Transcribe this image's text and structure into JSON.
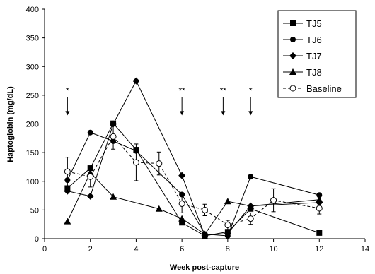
{
  "chart_data": {
    "type": "line",
    "title": "",
    "xlabel": "Week post-capture",
    "ylabel": "Haptoglobin (mg/dL)",
    "xlim": [
      0,
      14
    ],
    "ylim": [
      0,
      400
    ],
    "xticks": [
      "0",
      "2",
      "4",
      "6",
      "8",
      "10",
      "12",
      "14"
    ],
    "yticks": [
      "0",
      "50",
      "100",
      "150",
      "200",
      "250",
      "300",
      "350",
      "400"
    ],
    "grid": false,
    "legend_position": "top-right",
    "series": [
      {
        "name": "TJ5",
        "marker": "square",
        "line": "solid",
        "points": [
          [
            1,
            88
          ],
          [
            2,
            123
          ],
          [
            3,
            201
          ],
          [
            4,
            155
          ],
          [
            6,
            28
          ],
          [
            7,
            5
          ],
          [
            8,
            12
          ],
          [
            9,
            52
          ],
          [
            12,
            10
          ]
        ]
      },
      {
        "name": "TJ6",
        "marker": "circle",
        "line": "solid",
        "points": [
          [
            1,
            102
          ],
          [
            2,
            185
          ],
          [
            3,
            170
          ],
          [
            4,
            153
          ],
          [
            6,
            77
          ],
          [
            7,
            8
          ],
          [
            8,
            5
          ],
          [
            9,
            108
          ],
          [
            12,
            76
          ]
        ]
      },
      {
        "name": "TJ7",
        "marker": "diamond",
        "line": "solid",
        "points": [
          [
            1,
            83
          ],
          [
            2,
            74
          ],
          [
            3,
            200
          ],
          [
            4,
            275
          ],
          [
            6,
            110
          ],
          [
            7,
            6
          ],
          [
            8,
            9
          ],
          [
            9,
            57
          ],
          [
            12,
            63
          ]
        ]
      },
      {
        "name": "TJ8",
        "marker": "triangle",
        "line": "solid",
        "points": [
          [
            1,
            30
          ],
          [
            2,
            115
          ],
          [
            3,
            73
          ],
          [
            5,
            52
          ],
          [
            6,
            35
          ],
          [
            7,
            8
          ],
          [
            8,
            65
          ],
          [
            9,
            57
          ],
          [
            12,
            68
          ]
        ]
      },
      {
        "name": "Baseline",
        "marker": "open-circle",
        "line": "dashed",
        "points": [
          [
            1,
            117
          ],
          [
            2,
            108
          ],
          [
            3,
            178
          ],
          [
            4,
            133
          ],
          [
            5,
            131
          ],
          [
            6,
            61
          ],
          [
            7,
            50
          ],
          [
            8,
            24
          ],
          [
            9,
            35
          ],
          [
            10,
            67
          ],
          [
            12,
            53
          ]
        ],
        "error": [
          25,
          18,
          22,
          32,
          20,
          16,
          10,
          8,
          10,
          20,
          10
        ]
      }
    ],
    "annotations": [
      {
        "label": "*",
        "x": 1,
        "arrow_to_y": 210
      },
      {
        "label": "**",
        "x": 6,
        "arrow_to_y": 210
      },
      {
        "label": "**",
        "x": 7.8,
        "arrow_to_y": 210
      },
      {
        "label": "*",
        "x": 9,
        "arrow_to_y": 210
      }
    ]
  }
}
